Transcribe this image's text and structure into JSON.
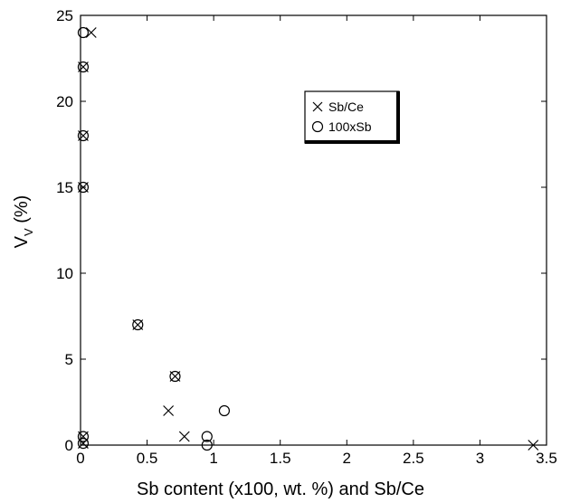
{
  "chart_data": {
    "type": "scatter",
    "xlabel": "Sb content (x100, wt. %) and Sb/Ce",
    "ylabel_main": "V",
    "ylabel_sub": "V",
    "ylabel_tail": " (%)",
    "xlim": [
      0,
      3.5
    ],
    "ylim": [
      0,
      25
    ],
    "x_ticks": [
      "0",
      "0.5",
      "1",
      "1.5",
      "2",
      "2.5",
      "3",
      "3.5"
    ],
    "y_ticks": [
      "0",
      "5",
      "10",
      "15",
      "20",
      "25"
    ],
    "grid": false,
    "legend_position": "top-right",
    "series": [
      {
        "name": "Sb/Ce",
        "marker": "x",
        "points": [
          {
            "x": 0.08,
            "y": 24
          },
          {
            "x": 0.02,
            "y": 22
          },
          {
            "x": 0.02,
            "y": 18
          },
          {
            "x": 0.02,
            "y": 15
          },
          {
            "x": 0.43,
            "y": 7
          },
          {
            "x": 0.71,
            "y": 4
          },
          {
            "x": 0.66,
            "y": 2
          },
          {
            "x": 0.78,
            "y": 0.5
          },
          {
            "x": 0.02,
            "y": 0.5
          },
          {
            "x": 0.02,
            "y": 0.1
          },
          {
            "x": 3.4,
            "y": 0
          }
        ]
      },
      {
        "name": "100xSb",
        "marker": "o",
        "points": [
          {
            "x": 0.02,
            "y": 24
          },
          {
            "x": 0.02,
            "y": 22
          },
          {
            "x": 0.02,
            "y": 18
          },
          {
            "x": 0.02,
            "y": 15
          },
          {
            "x": 0.43,
            "y": 7
          },
          {
            "x": 0.71,
            "y": 4
          },
          {
            "x": 1.08,
            "y": 2
          },
          {
            "x": 0.95,
            "y": 0.5
          },
          {
            "x": 0.95,
            "y": 0
          },
          {
            "x": 0.02,
            "y": 0.5
          },
          {
            "x": 0.02,
            "y": 0.1
          }
        ]
      }
    ]
  }
}
